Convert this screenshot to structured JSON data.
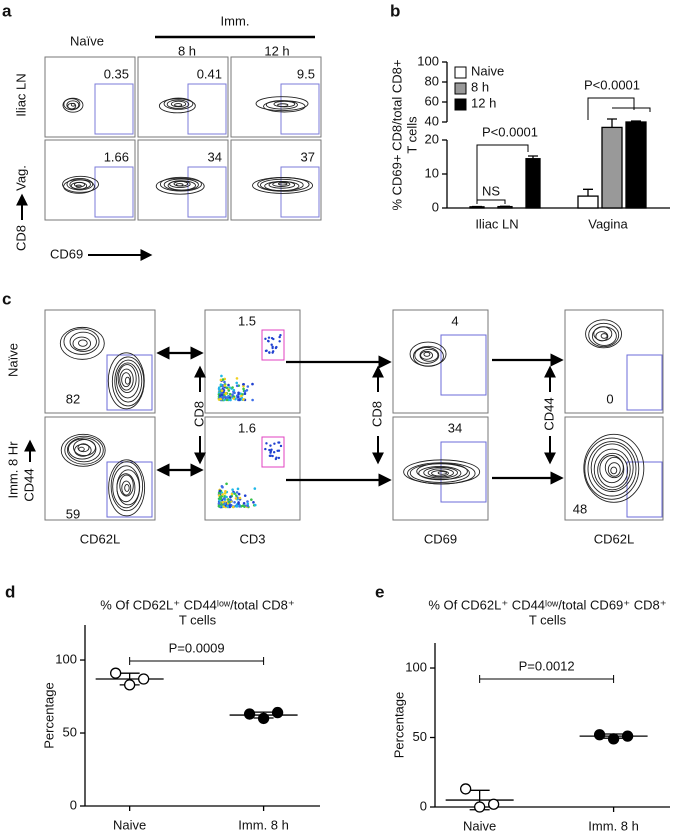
{
  "panel_a": {
    "label": "a",
    "col_headers": [
      "Naïve",
      "8 h",
      "12 h"
    ],
    "group_header": "Imm.",
    "row_labels": [
      "Iliac LN",
      "Vag."
    ],
    "y_axis": "CD8",
    "x_axis": "CD69",
    "gate_values": [
      [
        0.35,
        0.41,
        9.5
      ],
      [
        1.66,
        34,
        37
      ]
    ]
  },
  "panel_c": {
    "label": "c",
    "row_labels": [
      "Naïve",
      "Imm. 8 Hr"
    ],
    "x_axes": [
      "CD62L",
      "CD3",
      "CD69",
      "CD62L"
    ],
    "y_axes": [
      "CD44",
      "CD8",
      "CD8",
      "CD44"
    ],
    "gate_values": [
      [
        82,
        1.5,
        4,
        0
      ],
      [
        59,
        1.6,
        34,
        48
      ]
    ]
  },
  "chart_data": [
    {
      "panel_label": "b",
      "type": "bar",
      "y_label_lines": [
        "% CD69+ CD8/total CD8+",
        "T cells"
      ],
      "categories": [
        "Iliac LN",
        "Vagina"
      ],
      "series": [
        {
          "name": "Naive",
          "color": "#ffffff",
          "values": [
            0.35,
            3.5
          ],
          "errors": [
            0.1,
            2
          ]
        },
        {
          "name": "8 h",
          "color": "#999999",
          "values": [
            0.41,
            34
          ],
          "errors": [
            0.1,
            9
          ]
        },
        {
          "name": "12 h",
          "color": "#000000",
          "values": [
            14.5,
            40
          ],
          "errors": [
            0.8,
            1
          ]
        }
      ],
      "ylim": [
        0,
        100
      ],
      "yticks": [
        0,
        10,
        20,
        40,
        60,
        80,
        100
      ],
      "y_break": [
        20,
        40
      ],
      "legend": "upper-left",
      "annotations": [
        "NS",
        "P<0.0001",
        "P<0.0001"
      ]
    },
    {
      "panel_label": "d",
      "type": "dot",
      "title_lines": [
        "% Of CD62L⁺ CD44ˡᵒʷ/total CD8⁺",
        "T cells"
      ],
      "y_label": "Percentage",
      "categories": [
        "Naive",
        "Imm. 8 h"
      ],
      "points": [
        [
          91,
          83,
          87
        ],
        [
          63,
          60,
          64
        ]
      ],
      "filled": [
        false,
        true
      ],
      "means": [
        87,
        62.3
      ],
      "sd": [
        4,
        2
      ],
      "ylim": [
        0,
        124
      ],
      "yticks": [
        0,
        50,
        100
      ],
      "annotation": "P=0.0009"
    },
    {
      "panel_label": "e",
      "type": "dot",
      "title_lines": [
        "% Of CD62L⁺ CD44ˡᵒʷ/total CD69⁺ CD8⁺",
        "T cells"
      ],
      "y_label": "Percentage",
      "categories": [
        "Naive",
        "Imm. 8 h"
      ],
      "points": [
        [
          13,
          0,
          2
        ],
        [
          52,
          49,
          51
        ]
      ],
      "filled": [
        false,
        true
      ],
      "means": [
        5,
        51
      ],
      "sd": [
        7,
        1.5
      ],
      "ylim": [
        0,
        118
      ],
      "yticks": [
        0,
        50,
        100
      ],
      "annotation": "P=0.0012"
    }
  ]
}
